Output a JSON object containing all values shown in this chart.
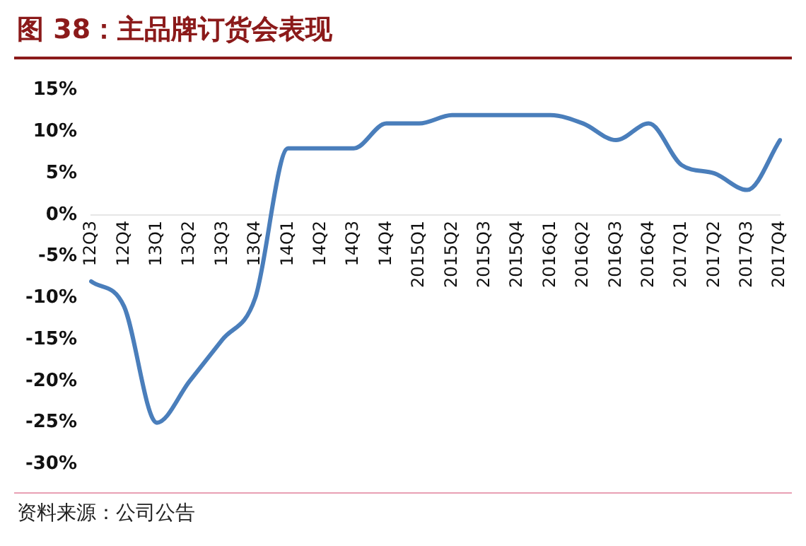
{
  "chart_data": {
    "type": "line",
    "title": "图 38：主品牌订货会表现",
    "categories": [
      "12Q3",
      "12Q4",
      "13Q1",
      "13Q2",
      "13Q3",
      "13Q4",
      "14Q1",
      "14Q2",
      "14Q3",
      "14Q4",
      "2015Q1",
      "2015Q2",
      "2015Q3",
      "2015Q4",
      "2016Q1",
      "2016Q2",
      "2016Q3",
      "2016Q4",
      "2017Q1",
      "2017Q2",
      "2017Q3",
      "2017Q4"
    ],
    "series": [
      {
        "color": "#4a7ebb",
        "values": [
          -8,
          -11,
          -25,
          -20,
          -15,
          -10,
          8,
          8,
          8,
          11,
          11,
          12,
          12,
          12,
          12,
          11,
          9,
          11,
          6,
          5,
          3,
          9
        ]
      }
    ],
    "ylim": [
      -30,
      15
    ],
    "yticks": [
      {
        "value": -30,
        "label": "-30%"
      },
      {
        "value": -25,
        "label": "-25%"
      },
      {
        "value": -20,
        "label": "-20%"
      },
      {
        "value": -15,
        "label": "-15%"
      },
      {
        "value": -10,
        "label": "-10%"
      },
      {
        "value": -5,
        "label": "-5%"
      },
      {
        "value": 0,
        "label": "0%"
      },
      {
        "value": 5,
        "label": "5%"
      },
      {
        "value": 10,
        "label": "10%"
      },
      {
        "value": 15,
        "label": "15%"
      }
    ],
    "grid": false,
    "legend": false,
    "marker": "none",
    "line_style": "solid",
    "annotations": [
      "资料来源：公司公告"
    ]
  }
}
